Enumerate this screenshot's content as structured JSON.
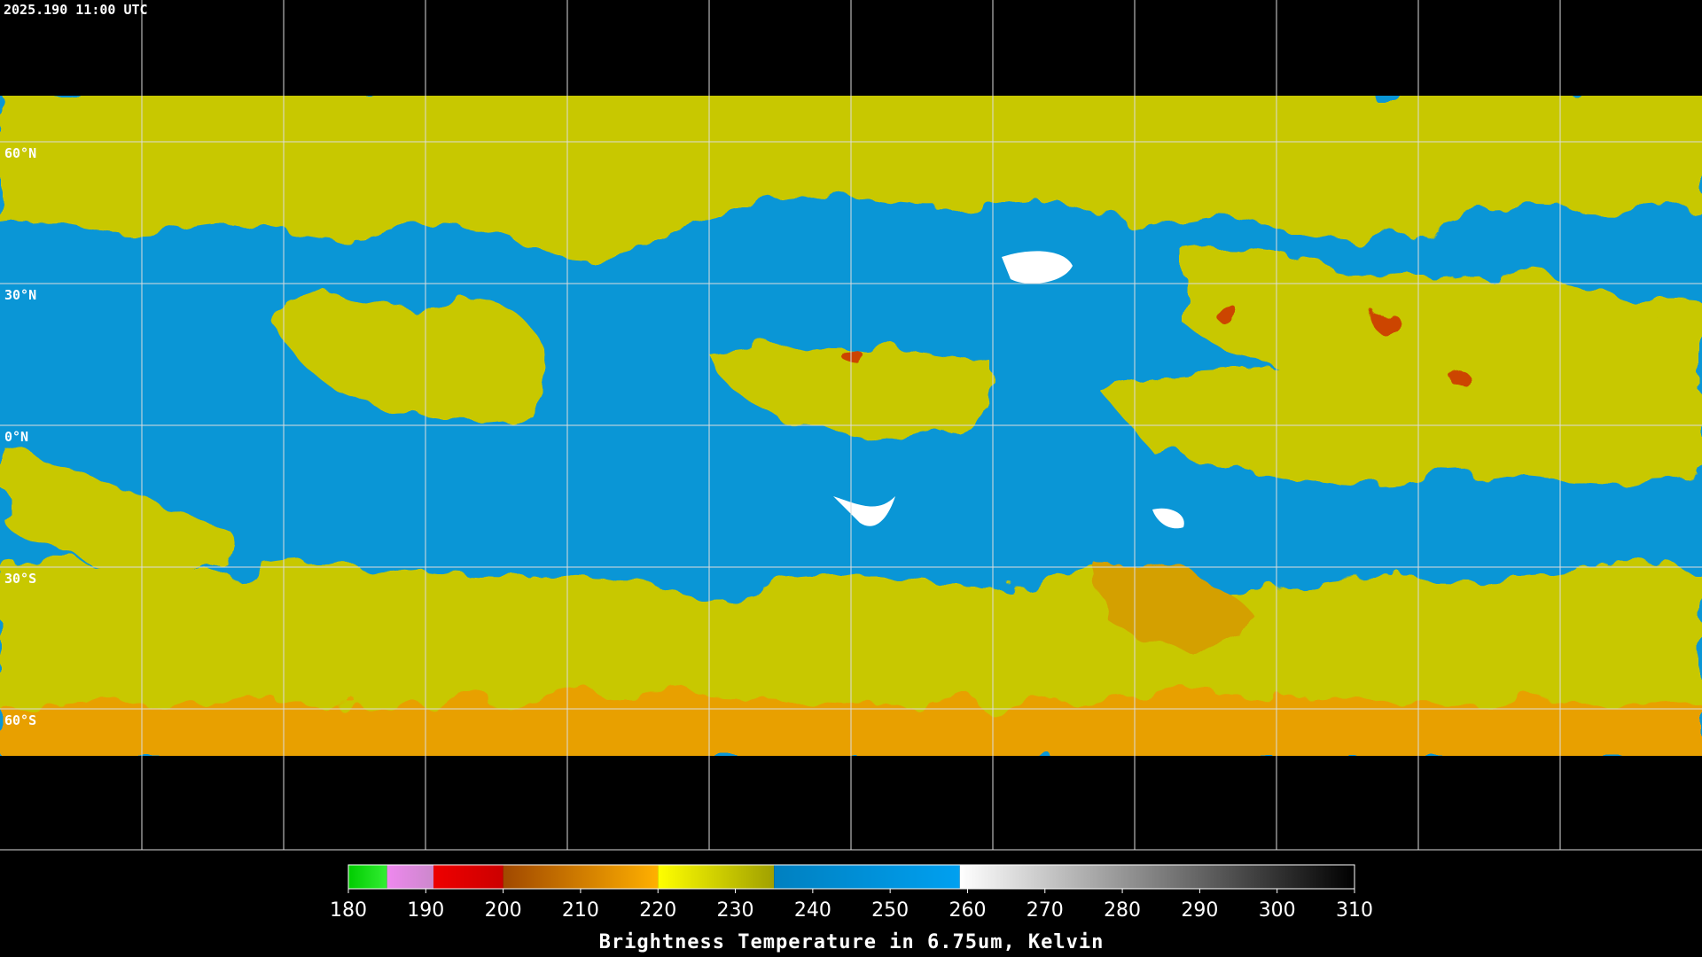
{
  "header": {
    "timestamp": "2025.190 11:00 UTC"
  },
  "map": {
    "lat_labels": [
      "60°N",
      "30°N",
      "0°N",
      "30°S",
      "60°S"
    ]
  },
  "colorbar": {
    "title": "Brightness Temperature in 6.75um, Kelvin",
    "range": [
      180,
      310
    ],
    "ticks": [
      180,
      190,
      200,
      210,
      220,
      230,
      240,
      250,
      260,
      270,
      280,
      290,
      300,
      310
    ],
    "segments": [
      {
        "from": 180,
        "to": 185,
        "colors": [
          "#00cc00",
          "#33ee33"
        ]
      },
      {
        "from": 185,
        "to": 191,
        "colors": [
          "#ee88ee",
          "#cc88cc"
        ]
      },
      {
        "from": 191,
        "to": 200,
        "colors": [
          "#ee0000",
          "#cc0000"
        ]
      },
      {
        "from": 200,
        "to": 220,
        "colors": [
          "#a04800",
          "#ffb000"
        ]
      },
      {
        "from": 220,
        "to": 235,
        "colors": [
          "#ffff00",
          "#a0a000"
        ]
      },
      {
        "from": 235,
        "to": 259,
        "colors": [
          "#0080c0",
          "#00a0f0"
        ]
      },
      {
        "from": 259,
        "to": 310,
        "colors": [
          "#ffffff",
          "#000000"
        ]
      }
    ]
  }
}
